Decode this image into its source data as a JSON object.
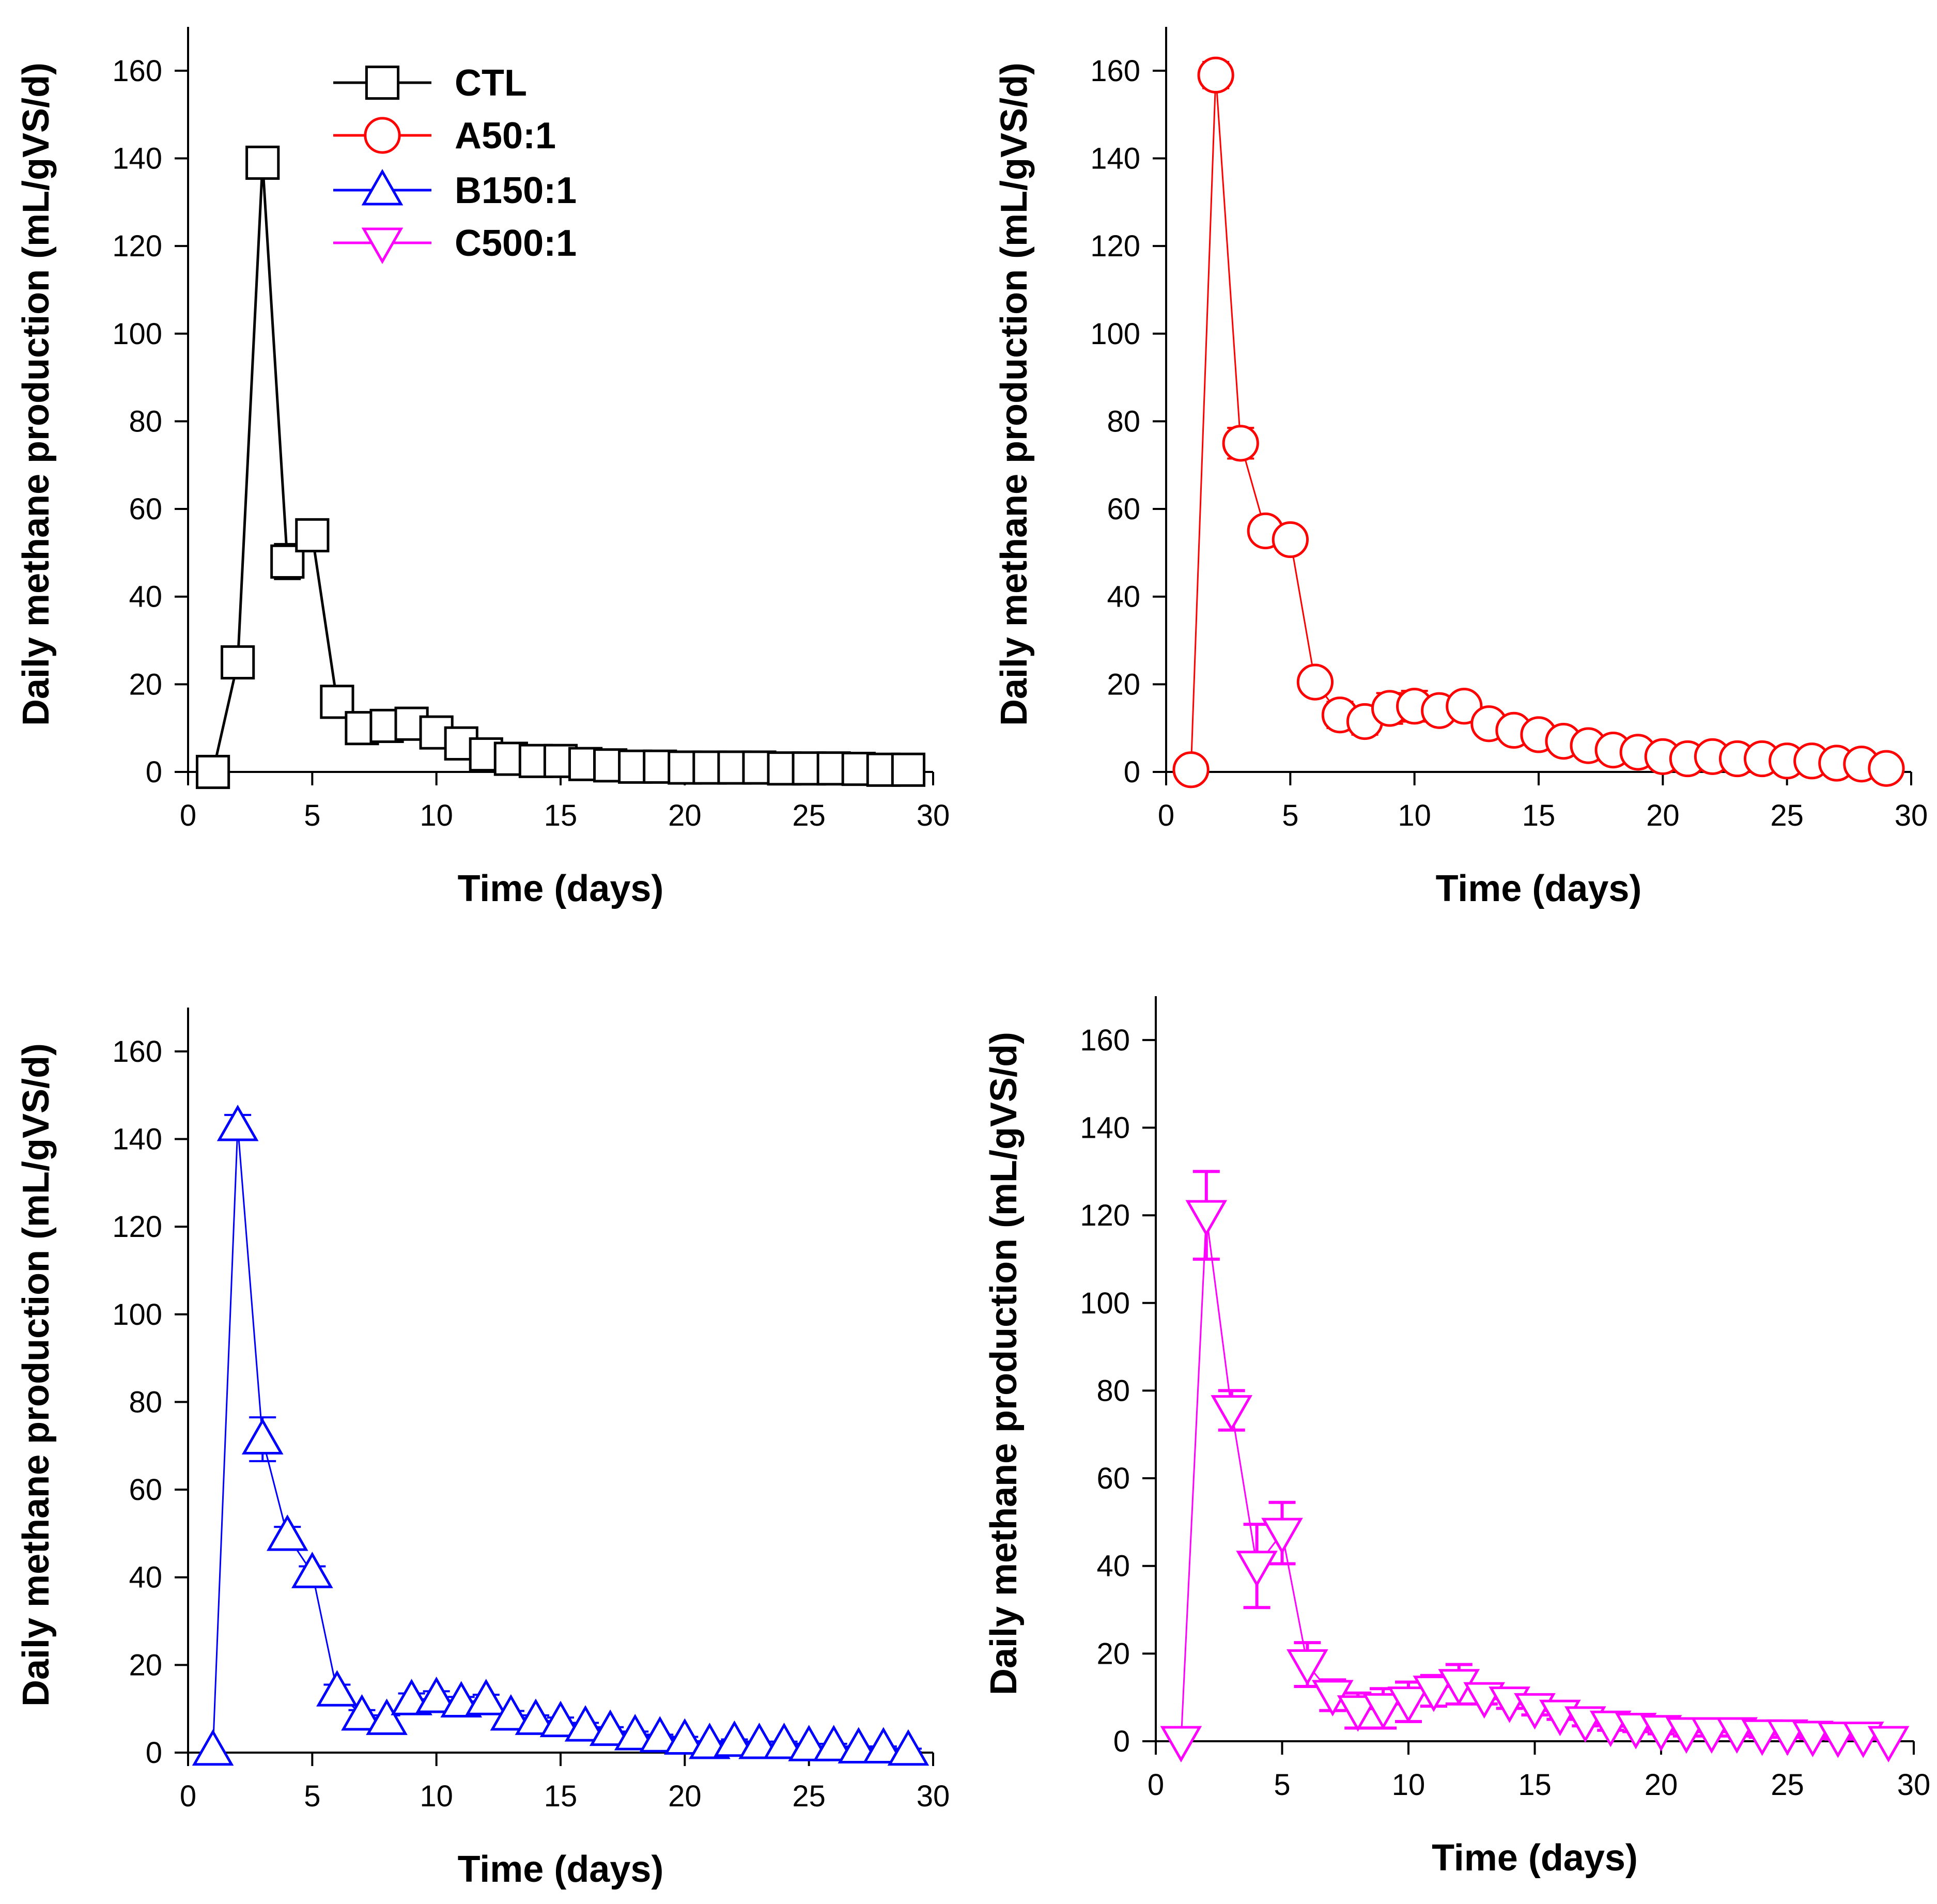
{
  "chart_data": [
    {
      "type": "line",
      "panel": "top-left",
      "xlabel": "Time (days)",
      "ylabel": "Daily methane production (mL/gVS/d)",
      "xlim": [
        0,
        30
      ],
      "ylim": [
        0,
        170
      ],
      "xticks": [
        0,
        5,
        10,
        15,
        20,
        25,
        30
      ],
      "yticks": [
        0,
        20,
        40,
        60,
        80,
        100,
        120,
        140,
        160
      ],
      "grid": false,
      "legend_position": "top-left",
      "series": [
        {
          "name": "CTL",
          "color": "#000000",
          "marker": "square",
          "x": [
            1,
            2,
            3,
            4,
            5,
            6,
            7,
            8,
            9,
            10,
            11,
            12,
            13,
            14,
            15,
            16,
            17,
            18,
            19,
            20,
            21,
            22,
            23,
            24,
            25,
            26,
            27,
            28,
            29
          ],
          "y": [
            0,
            25,
            139,
            48,
            54,
            16,
            10,
            10.5,
            11,
            9,
            6.5,
            4,
            3,
            2.5,
            2.5,
            1.8,
            1.5,
            1.2,
            1.2,
            1,
            1,
            1,
            1,
            0.8,
            0.8,
            0.8,
            0.7,
            0.5,
            0.5
          ],
          "err": [
            0,
            2,
            2,
            4,
            1.5,
            2,
            2,
            1.5,
            1.5,
            2,
            1.5,
            1,
            1,
            1,
            1,
            0.8,
            0.7,
            0.6,
            0.6,
            0.5,
            0.5,
            0.5,
            0.5,
            0.5,
            0.5,
            0.5,
            0.5,
            0.4,
            0.4
          ]
        }
      ]
    },
    {
      "type": "line",
      "panel": "top-right",
      "xlabel": "Time (days)",
      "ylabel": "Daily methane production (mL/gVS/d)",
      "xlim": [
        0,
        30
      ],
      "ylim": [
        0,
        170
      ],
      "xticks": [
        0,
        5,
        10,
        15,
        20,
        25,
        30
      ],
      "yticks": [
        0,
        20,
        40,
        60,
        80,
        100,
        120,
        140,
        160
      ],
      "grid": false,
      "series": [
        {
          "name": "A50:1",
          "color": "#ff0000",
          "marker": "circle",
          "x": [
            1,
            2,
            3,
            4,
            5,
            6,
            7,
            8,
            9,
            10,
            11,
            12,
            13,
            14,
            15,
            16,
            17,
            18,
            19,
            20,
            21,
            22,
            23,
            24,
            25,
            26,
            27,
            28,
            29
          ],
          "y": [
            0.5,
            159,
            75,
            55,
            53,
            20.5,
            13,
            11.5,
            14.5,
            15,
            14,
            15,
            11,
            9.5,
            8.5,
            7,
            6,
            5,
            4.5,
            3.5,
            3,
            3.5,
            3,
            3,
            2.5,
            2.5,
            2,
            1.8,
            0.8
          ],
          "err": [
            0,
            3,
            3.5,
            2.5,
            1.5,
            1.5,
            3,
            3,
            3.5,
            3.5,
            2,
            1.5,
            1.5,
            1.2,
            1,
            1,
            0.8,
            0.8,
            0.8,
            0.8,
            0.6,
            0.6,
            0.6,
            0.6,
            0.6,
            0.6,
            0.5,
            0.5,
            0.4
          ]
        }
      ]
    },
    {
      "type": "line",
      "panel": "bottom-left",
      "xlabel": "Time (days)",
      "ylabel": "Daily methane production (mL/gVS/d)",
      "xlim": [
        0,
        30
      ],
      "ylim": [
        0,
        170
      ],
      "xticks": [
        0,
        5,
        10,
        15,
        20,
        25,
        30
      ],
      "yticks": [
        0,
        20,
        40,
        60,
        80,
        100,
        120,
        140,
        160
      ],
      "grid": false,
      "series": [
        {
          "name": "B150:1",
          "color": "#0000ff",
          "marker": "triangle-up",
          "x": [
            1,
            2,
            3,
            4,
            5,
            6,
            7,
            8,
            9,
            10,
            11,
            12,
            13,
            14,
            15,
            16,
            17,
            18,
            19,
            20,
            21,
            22,
            23,
            24,
            25,
            26,
            27,
            28,
            29
          ],
          "y": [
            0.5,
            143,
            71.5,
            49.5,
            41,
            14,
            8.5,
            7.5,
            12,
            12.5,
            11.5,
            12,
            8.5,
            7.5,
            7,
            6,
            5,
            4,
            3.5,
            3,
            2,
            2.5,
            2,
            2,
            1.5,
            1.5,
            1,
            1,
            0.5
          ],
          "err": [
            0,
            2.5,
            5,
            2,
            1.5,
            1.5,
            1.2,
            1,
            1.5,
            1.5,
            1.2,
            1.2,
            1,
            1,
            1,
            0.8,
            0.8,
            0.8,
            0.6,
            0.6,
            0.6,
            0.5,
            0.5,
            0.5,
            0.5,
            0.5,
            0.4,
            0.4,
            0.4
          ]
        }
      ]
    },
    {
      "type": "line",
      "panel": "bottom-right",
      "xlabel": "Time (days)",
      "ylabel": "Daily methane production (mL/gVS/d)",
      "xlim": [
        0,
        30
      ],
      "ylim": [
        0,
        170
      ],
      "xticks": [
        0,
        5,
        10,
        15,
        20,
        25,
        30
      ],
      "yticks": [
        0,
        20,
        40,
        60,
        80,
        100,
        120,
        140,
        160
      ],
      "grid": false,
      "series": [
        {
          "name": "C500:1",
          "color": "#ff00ff",
          "marker": "triangle-down",
          "x": [
            1,
            2,
            3,
            4,
            5,
            6,
            7,
            8,
            9,
            10,
            11,
            12,
            13,
            14,
            15,
            16,
            17,
            18,
            19,
            20,
            21,
            22,
            23,
            24,
            25,
            26,
            27,
            28,
            29
          ],
          "y": [
            0,
            120,
            75.5,
            40,
            47.5,
            17.5,
            10.5,
            7,
            7.5,
            9,
            11.5,
            13,
            10,
            9,
            7.5,
            6,
            4.5,
            3.5,
            3,
            2.5,
            2,
            2,
            2,
            1.5,
            1.5,
            1.2,
            1,
            1,
            0
          ],
          "err": [
            0,
            10,
            4.5,
            9.5,
            7,
            5,
            3.5,
            4,
            4.5,
            4.5,
            3.5,
            4.5,
            1.5,
            1.5,
            1.5,
            1,
            1,
            1,
            0.8,
            0.8,
            0.8,
            0.8,
            0.8,
            0.6,
            0.6,
            0.6,
            0.5,
            0.5,
            0
          ]
        }
      ]
    }
  ]
}
